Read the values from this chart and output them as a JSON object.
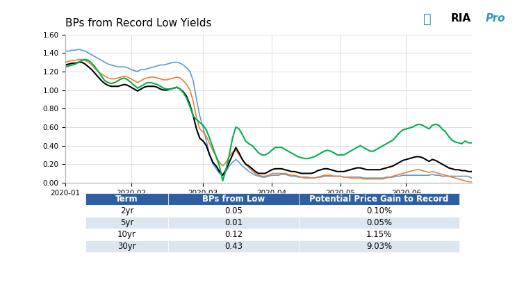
{
  "title": "BPs from Record Low Yields",
  "ria_text": "RIA",
  "ria_pro": "Pro",
  "ylim": [
    0.0,
    1.6
  ],
  "yticks": [
    0.0,
    0.2,
    0.4,
    0.6,
    0.8,
    1.0,
    1.2,
    1.4,
    1.6
  ],
  "colors": {
    "2yr": "#5b9bd5",
    "5yr": "#ed7d31",
    "10yr": "#000000",
    "30yr": "#00b050"
  },
  "background_color": "#ffffff",
  "chart_bg": "#ffffff",
  "grid_color": "#d0d0d0",
  "table_header_bg": "#2e5fa3",
  "table_header_fg": "#ffffff",
  "table_row_alt_bg": "#dce6f1",
  "table_row_bg": "#ffffff",
  "table_data": {
    "headers": [
      "Term",
      "BPs from Low",
      "Potential Price Gain to Record"
    ],
    "rows": [
      [
        "2yr",
        "0.05",
        "0.10%"
      ],
      [
        "5yr",
        "0.01",
        "0.05%"
      ],
      [
        "10yr",
        "0.12",
        "1.15%"
      ],
      [
        "30yr",
        "0.43",
        "9.03%"
      ]
    ]
  },
  "series": {
    "2yr": [
      1.42,
      1.42,
      1.43,
      1.43,
      1.44,
      1.43,
      1.42,
      1.4,
      1.38,
      1.36,
      1.34,
      1.32,
      1.3,
      1.28,
      1.27,
      1.26,
      1.25,
      1.25,
      1.25,
      1.24,
      1.22,
      1.21,
      1.2,
      1.22,
      1.22,
      1.23,
      1.24,
      1.25,
      1.26,
      1.27,
      1.27,
      1.28,
      1.29,
      1.3,
      1.3,
      1.29,
      1.27,
      1.24,
      1.2,
      1.1,
      0.9,
      0.72,
      0.6,
      0.45,
      0.3,
      0.2,
      0.15,
      0.1,
      0.08,
      0.12,
      0.18,
      0.22,
      0.25,
      0.22,
      0.18,
      0.15,
      0.12,
      0.1,
      0.08,
      0.07,
      0.06,
      0.06,
      0.07,
      0.08,
      0.08,
      0.08,
      0.09,
      0.09,
      0.08,
      0.07,
      0.07,
      0.06,
      0.06,
      0.05,
      0.05,
      0.05,
      0.05,
      0.06,
      0.06,
      0.07,
      0.07,
      0.07,
      0.07,
      0.07,
      0.07,
      0.06,
      0.06,
      0.06,
      0.06,
      0.06,
      0.06,
      0.05,
      0.05,
      0.05,
      0.05,
      0.05,
      0.05,
      0.05,
      0.06,
      0.06,
      0.06,
      0.07,
      0.07,
      0.08,
      0.08,
      0.08,
      0.08,
      0.08,
      0.08,
      0.08,
      0.08,
      0.08,
      0.09,
      0.08,
      0.08,
      0.07,
      0.07,
      0.07,
      0.07,
      0.07,
      0.07,
      0.07,
      0.07,
      0.07,
      0.05
    ],
    "5yr": [
      1.3,
      1.31,
      1.32,
      1.32,
      1.33,
      1.33,
      1.32,
      1.3,
      1.27,
      1.23,
      1.2,
      1.17,
      1.15,
      1.13,
      1.12,
      1.12,
      1.13,
      1.14,
      1.15,
      1.14,
      1.12,
      1.1,
      1.08,
      1.1,
      1.12,
      1.13,
      1.14,
      1.14,
      1.13,
      1.12,
      1.11,
      1.11,
      1.12,
      1.13,
      1.14,
      1.13,
      1.1,
      1.06,
      1.0,
      0.88,
      0.7,
      0.58,
      0.55,
      0.5,
      0.42,
      0.35,
      0.28,
      0.22,
      0.18,
      0.22,
      0.28,
      0.33,
      0.35,
      0.3,
      0.25,
      0.2,
      0.16,
      0.13,
      0.1,
      0.08,
      0.07,
      0.07,
      0.08,
      0.1,
      0.1,
      0.1,
      0.1,
      0.1,
      0.09,
      0.08,
      0.08,
      0.07,
      0.06,
      0.06,
      0.06,
      0.05,
      0.05,
      0.06,
      0.07,
      0.08,
      0.08,
      0.08,
      0.07,
      0.07,
      0.07,
      0.06,
      0.06,
      0.05,
      0.05,
      0.05,
      0.05,
      0.04,
      0.04,
      0.04,
      0.04,
      0.04,
      0.04,
      0.04,
      0.05,
      0.06,
      0.07,
      0.08,
      0.09,
      0.1,
      0.11,
      0.12,
      0.13,
      0.14,
      0.14,
      0.13,
      0.12,
      0.11,
      0.12,
      0.11,
      0.1,
      0.09,
      0.08,
      0.07,
      0.06,
      0.05,
      0.04,
      0.03,
      0.02,
      0.01,
      0.01
    ],
    "10yr": [
      1.27,
      1.28,
      1.29,
      1.29,
      1.3,
      1.3,
      1.28,
      1.25,
      1.22,
      1.18,
      1.14,
      1.1,
      1.07,
      1.05,
      1.04,
      1.04,
      1.04,
      1.05,
      1.06,
      1.05,
      1.03,
      1.01,
      0.99,
      1.01,
      1.03,
      1.04,
      1.04,
      1.04,
      1.03,
      1.01,
      1.0,
      1.0,
      1.01,
      1.02,
      1.03,
      1.01,
      0.98,
      0.93,
      0.84,
      0.72,
      0.58,
      0.48,
      0.45,
      0.4,
      0.3,
      0.22,
      0.18,
      0.12,
      0.08,
      0.14,
      0.22,
      0.3,
      0.38,
      0.32,
      0.25,
      0.2,
      0.18,
      0.15,
      0.12,
      0.1,
      0.1,
      0.1,
      0.12,
      0.14,
      0.15,
      0.15,
      0.15,
      0.14,
      0.13,
      0.12,
      0.12,
      0.11,
      0.1,
      0.1,
      0.1,
      0.1,
      0.11,
      0.13,
      0.14,
      0.15,
      0.15,
      0.14,
      0.13,
      0.12,
      0.12,
      0.12,
      0.13,
      0.14,
      0.15,
      0.16,
      0.16,
      0.15,
      0.14,
      0.14,
      0.14,
      0.14,
      0.14,
      0.15,
      0.16,
      0.17,
      0.18,
      0.2,
      0.22,
      0.24,
      0.25,
      0.26,
      0.27,
      0.28,
      0.28,
      0.27,
      0.25,
      0.23,
      0.25,
      0.24,
      0.22,
      0.2,
      0.18,
      0.16,
      0.15,
      0.14,
      0.14,
      0.13,
      0.13,
      0.12,
      0.12
    ],
    "30yr": [
      1.25,
      1.26,
      1.27,
      1.28,
      1.3,
      1.32,
      1.33,
      1.32,
      1.29,
      1.25,
      1.2,
      1.15,
      1.1,
      1.08,
      1.07,
      1.08,
      1.1,
      1.12,
      1.13,
      1.11,
      1.08,
      1.05,
      1.02,
      1.04,
      1.06,
      1.08,
      1.08,
      1.07,
      1.06,
      1.04,
      1.02,
      1.01,
      1.01,
      1.02,
      1.03,
      1.01,
      0.97,
      0.91,
      0.82,
      0.72,
      0.68,
      0.65,
      0.62,
      0.57,
      0.48,
      0.38,
      0.28,
      0.18,
      0.02,
      0.14,
      0.3,
      0.48,
      0.6,
      0.58,
      0.52,
      0.45,
      0.42,
      0.4,
      0.36,
      0.32,
      0.3,
      0.3,
      0.32,
      0.35,
      0.38,
      0.38,
      0.38,
      0.36,
      0.34,
      0.32,
      0.3,
      0.28,
      0.27,
      0.26,
      0.26,
      0.27,
      0.28,
      0.3,
      0.32,
      0.34,
      0.35,
      0.34,
      0.32,
      0.3,
      0.3,
      0.3,
      0.32,
      0.34,
      0.36,
      0.38,
      0.4,
      0.38,
      0.36,
      0.34,
      0.34,
      0.36,
      0.38,
      0.4,
      0.42,
      0.44,
      0.46,
      0.5,
      0.54,
      0.57,
      0.58,
      0.59,
      0.6,
      0.62,
      0.63,
      0.62,
      0.6,
      0.58,
      0.62,
      0.63,
      0.62,
      0.58,
      0.55,
      0.5,
      0.46,
      0.44,
      0.43,
      0.42,
      0.45,
      0.43,
      0.43
    ]
  },
  "x_tick_labels": [
    "2020-01",
    "2020-02",
    "2020-03",
    "2020-04",
    "2020-05",
    "2020-06"
  ],
  "x_tick_positions": [
    0,
    20,
    42,
    63,
    84,
    104
  ]
}
